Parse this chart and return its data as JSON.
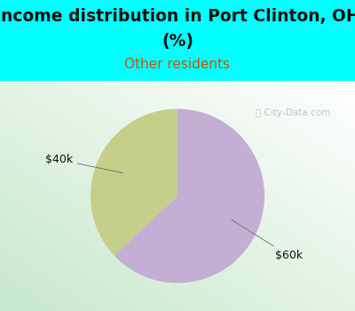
{
  "title_line1": "Income distribution in Port Clinton, OH",
  "title_line2": "(%)",
  "subtitle": "Other residents",
  "title_color": "#111111",
  "subtitle_color": "#cc5500",
  "background_color": "#00FFFF",
  "slices": [
    {
      "label": "$40k",
      "value": 37,
      "color": "#c5cf8a"
    },
    {
      "label": "$60k",
      "value": 63,
      "color": "#c4aed4"
    }
  ],
  "label_color": "#111111",
  "watermark": "City-Data.com",
  "watermark_color": "#afc0cc",
  "start_angle": 90,
  "counterclock": true,
  "figsize": [
    4.0,
    3.5
  ],
  "dpi": 100,
  "title_fontsize": 13.5,
  "subtitle_fontsize": 11,
  "label_fontsize": 9
}
